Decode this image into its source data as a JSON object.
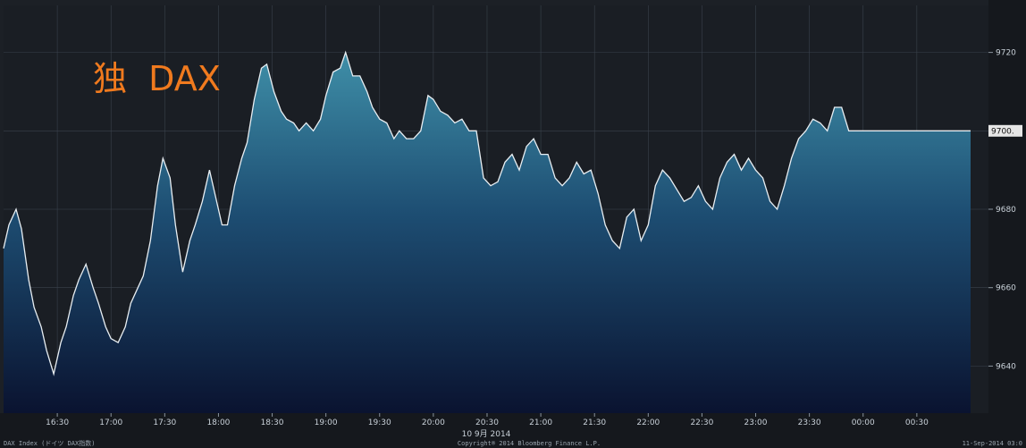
{
  "chart_data": {
    "type": "area",
    "title": "独  DAX",
    "date_label": "10 9月 2014",
    "x_ticks": [
      "16:30",
      "17:00",
      "17:30",
      "18:00",
      "18:30",
      "19:00",
      "19:30",
      "20:00",
      "20:30",
      "21:00",
      "21:30",
      "22:00",
      "22:30",
      "23:00",
      "23:30",
      "00:00",
      "00:30"
    ],
    "y_ticks": [
      9640,
      9660,
      9680,
      9700,
      9720
    ],
    "ylim": [
      9628,
      9732
    ],
    "last_value_label": "9700.",
    "x_range_minutes": [
      960,
      1510
    ],
    "series": [
      {
        "x_minutes": [
          960,
          963,
          967,
          970,
          974,
          977,
          981,
          984,
          988,
          992,
          995,
          999,
          1002,
          1006,
          1010,
          1013,
          1017,
          1020,
          1024,
          1028,
          1031,
          1035,
          1038,
          1042,
          1046,
          1049,
          1053,
          1056,
          1060,
          1064,
          1067,
          1071,
          1075,
          1078,
          1082,
          1085,
          1089,
          1093,
          1096,
          1100,
          1104,
          1107,
          1111,
          1115,
          1118,
          1122,
          1125,
          1129,
          1133,
          1137,
          1140,
          1144,
          1148,
          1151,
          1155,
          1159,
          1163,
          1166,
          1170,
          1174,
          1178,
          1181,
          1185,
          1189,
          1193,
          1197,
          1200,
          1204,
          1208,
          1212,
          1216,
          1220,
          1224,
          1228,
          1232,
          1236,
          1240,
          1244,
          1248,
          1252,
          1256,
          1260,
          1264,
          1268,
          1272,
          1276,
          1280,
          1284,
          1288,
          1292,
          1296,
          1300,
          1304,
          1308,
          1312,
          1316,
          1320,
          1324,
          1328,
          1332,
          1336,
          1340,
          1344,
          1348,
          1352,
          1356,
          1360,
          1364,
          1368,
          1372,
          1376,
          1380,
          1384,
          1388,
          1392,
          1396,
          1400,
          1404,
          1408,
          1412,
          1416,
          1420,
          1424,
          1428,
          1432,
          1436,
          1440,
          1444,
          1448,
          1452,
          1456,
          1460,
          1464,
          1468,
          1472,
          1476,
          1480,
          1484,
          1488,
          1492,
          1496,
          1500
        ],
        "values": [
          9670,
          9676,
          9680,
          9675,
          9662,
          9655,
          9650,
          9644,
          9638,
          9646,
          9650,
          9658,
          9662,
          9666,
          9660,
          9656,
          9650,
          9647,
          9646,
          9650,
          9656,
          9660,
          9663,
          9672,
          9686,
          9693,
          9688,
          9676,
          9664,
          9672,
          9676,
          9682,
          9690,
          9684,
          9676,
          9676,
          9686,
          9693,
          9697,
          9708,
          9716,
          9717,
          9710,
          9705,
          9703,
          9702,
          9700,
          9702,
          9700,
          9703,
          9709,
          9715,
          9716,
          9720,
          9714,
          9714,
          9710,
          9706,
          9703,
          9702,
          9698,
          9700,
          9698,
          9698,
          9700,
          9709,
          9708,
          9705,
          9704,
          9702,
          9703,
          9700,
          9700,
          9688,
          9686,
          9687,
          9692,
          9694,
          9690,
          9696,
          9698,
          9694,
          9694,
          9688,
          9686,
          9688,
          9692,
          9689,
          9690,
          9684,
          9676,
          9672,
          9670,
          9678,
          9680,
          9672,
          9676,
          9686,
          9690,
          9688,
          9685,
          9682,
          9683,
          9686,
          9682,
          9680,
          9688,
          9692,
          9694,
          9690,
          9693,
          9690,
          9688,
          9682,
          9680,
          9686,
          9693,
          9698,
          9700,
          9703,
          9702,
          9700,
          9706,
          9706,
          9700,
          9700,
          9700,
          9700,
          9700,
          9700,
          9700,
          9700,
          9700,
          9700,
          9700,
          9700,
          9700,
          9700,
          9700,
          9700,
          9700,
          9700
        ]
      }
    ],
    "footer_left": "DAX Index (ドイツ DAX指数)",
    "footer_center": "Copyright® 2014 Bloomberg Finance L.P.",
    "footer_right": "11-Sep-2014 03:0",
    "colors": {
      "background": "#1c2026",
      "fill_top": "#3f8fa8",
      "fill_bottom": "#0a1330",
      "line": "#e8eef2",
      "grid": "#3a424c",
      "title": "#f07a1e"
    }
  }
}
